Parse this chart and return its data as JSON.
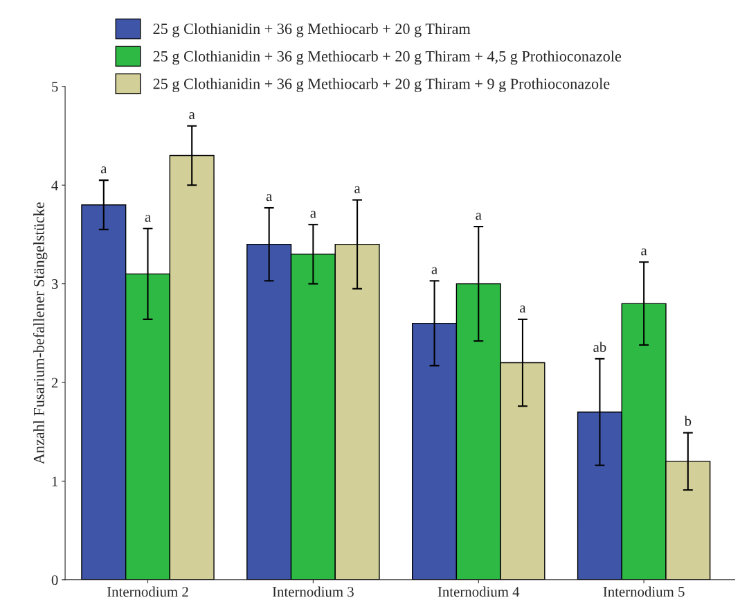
{
  "chart_data": {
    "type": "bar",
    "ylabel": "Anzahl Fusarium-befallener Stängelstücke",
    "categories": [
      "Internodium 2",
      "Internodium 3",
      "Internodium 4",
      "Internodium 5"
    ],
    "series": [
      {
        "name": "25 g Clothianidin + 36 g Methiocarb + 20 g Thiram",
        "color": "#3f56a8",
        "values": [
          3.8,
          3.4,
          2.6,
          1.7
        ],
        "errors": [
          0.25,
          0.37,
          0.43,
          0.54
        ]
      },
      {
        "name": "25 g Clothianidin + 36 g Methiocarb + 20 g Thiram + 4,5 g Prothioconazole",
        "color": "#2db944",
        "values": [
          3.1,
          3.3,
          3.0,
          2.8
        ],
        "errors": [
          0.46,
          0.3,
          0.58,
          0.42
        ]
      },
      {
        "name": "25 g Clothianidin + 36 g Methiocarb + 20 g Thiram + 9 g Prothioconazole",
        "color": "#d3cf98",
        "values": [
          4.3,
          3.4,
          2.2,
          1.2
        ],
        "errors": [
          0.3,
          0.45,
          0.44,
          0.29
        ]
      }
    ],
    "annotations": [
      "a",
      "a",
      "a",
      "a",
      "a",
      "a",
      "a",
      "a",
      "a",
      "ab",
      "a",
      "b"
    ],
    "ylim": [
      0,
      5
    ],
    "yticks": [
      0,
      1,
      2,
      3,
      4,
      5
    ],
    "grid": false,
    "legend": "top"
  }
}
